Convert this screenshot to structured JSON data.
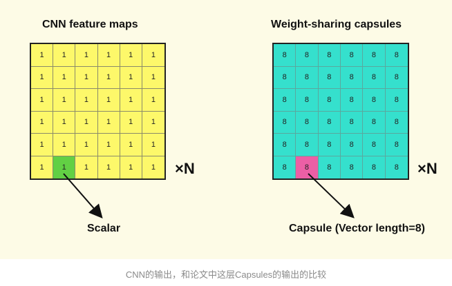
{
  "cnn": {
    "title": "CNN feature maps",
    "cell_value": "1",
    "highlight": {
      "row": 5,
      "col": 1
    },
    "multiplier": "×N",
    "label": "Scalar",
    "fill_color": "#fdf86a",
    "highlight_color": "#62d044"
  },
  "capsules": {
    "title": "Weight-sharing capsules",
    "cell_value": "8",
    "highlight": {
      "row": 5,
      "col": 1
    },
    "multiplier": "×N",
    "label": "Capsule (Vector length=8)",
    "fill_color": "#35e0cd",
    "highlight_color": "#ec5fa5"
  },
  "background_color": "#fdfbe6",
  "caption": "CNN的输出，和论文中这层Capsules的输出的比较"
}
